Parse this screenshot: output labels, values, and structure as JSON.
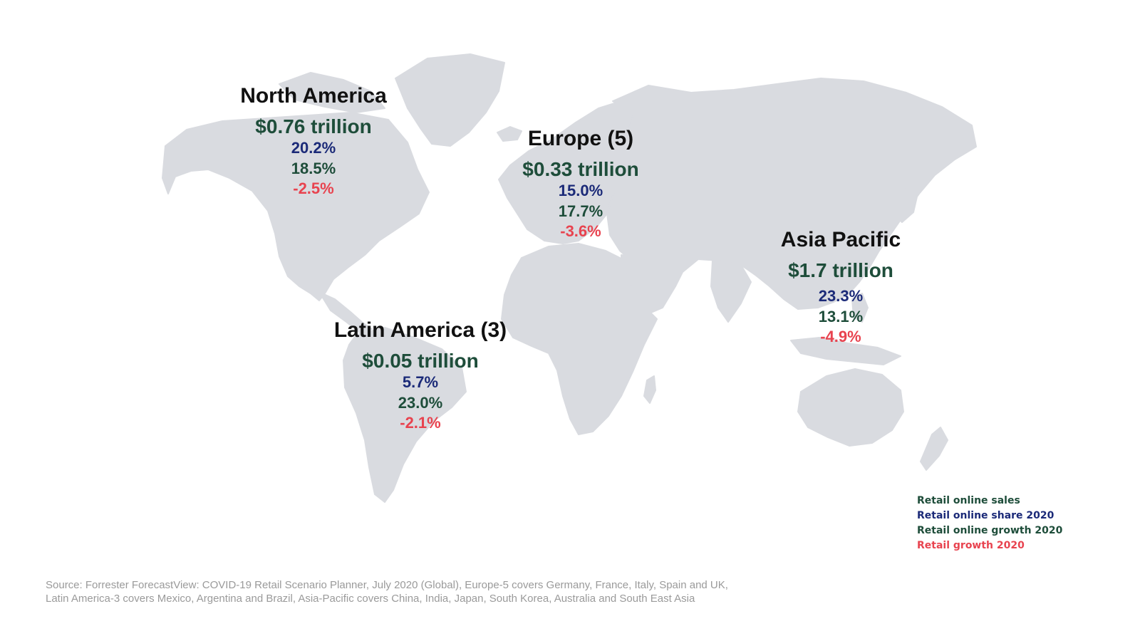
{
  "colors": {
    "sales": "#1e4d3a",
    "share": "#1b2a78",
    "online_growth": "#1e4d3a",
    "retail_growth": "#e8434f",
    "land": "#d9dbe0",
    "region_name": "#111111",
    "source_text": "#9a9a9a"
  },
  "regions": [
    {
      "name": "North America",
      "sales": "$0.76 trillion",
      "share": "20.2%",
      "online_growth": "18.5%",
      "retail_growth": "-2.5%"
    },
    {
      "name": "Europe (5)",
      "sales": "$0.33 trillion",
      "share": "15.0%",
      "online_growth": "17.7%",
      "retail_growth": "-3.6%"
    },
    {
      "name": "Asia Pacific",
      "sales": "$1.7 trillion",
      "share": "23.3%",
      "online_growth": "13.1%",
      "retail_growth": "-4.9%"
    },
    {
      "name": "Latin America (3)",
      "sales": "$0.05 trillion",
      "share": "5.7%",
      "online_growth": "23.0%",
      "retail_growth": "-2.1%"
    }
  ],
  "legend": {
    "sales": "Retail online sales",
    "share": "Retail online share 2020",
    "online_growth": "Retail online growth 2020",
    "retail_growth": "Retail growth 2020"
  },
  "source": {
    "line1": "Source: Forrester ForecastView: COVID-19 Retail Scenario Planner, July 2020 (Global), Europe-5 covers Germany, France, Italy, Spain and UK,",
    "line2": "Latin America-3 covers Mexico, Argentina and Brazil, Asia-Pacific covers China, India, Japan, South Korea, Australia and South East Asia"
  }
}
